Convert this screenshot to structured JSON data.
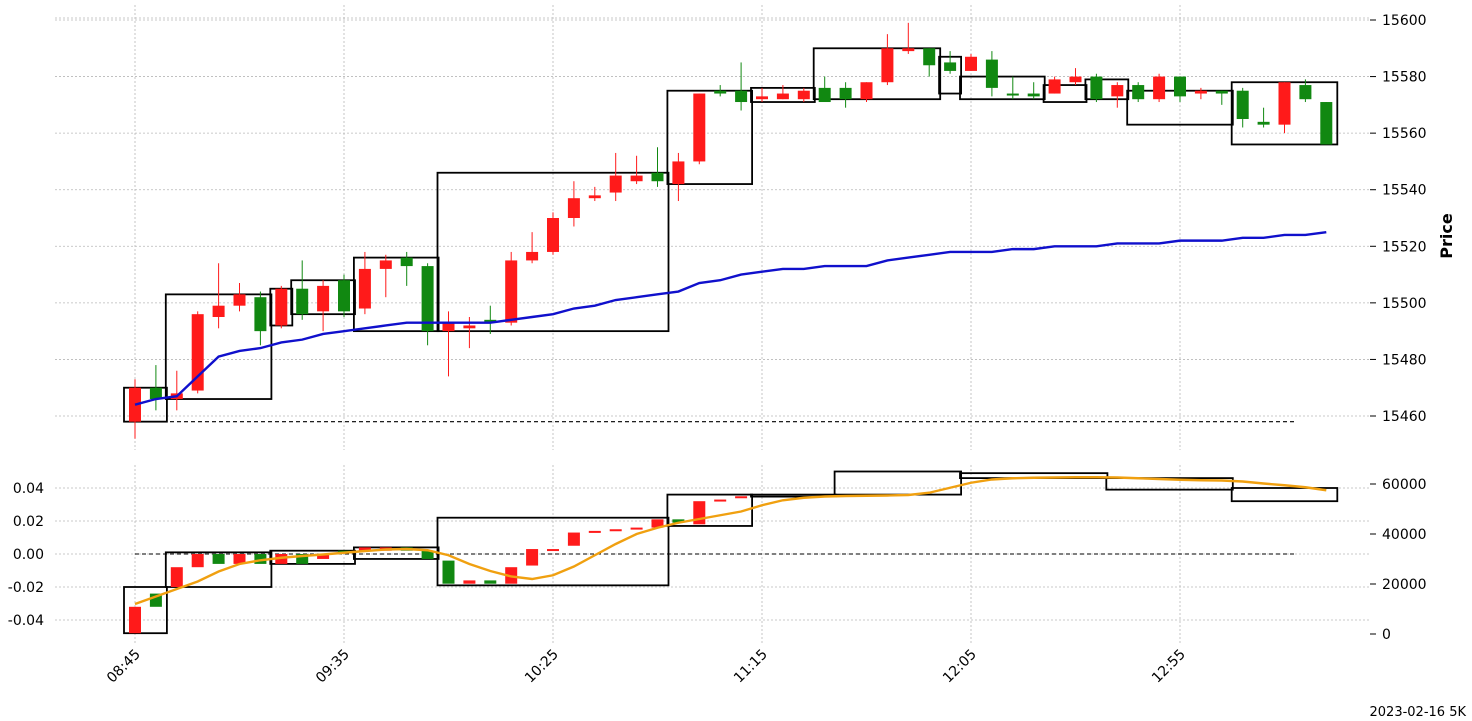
{
  "colors": {
    "up": "#ff1a1a",
    "down": "#118811",
    "vwap": "#1010cc",
    "volume_line": "#f0a010",
    "box": "#000000",
    "grid": "#b8b8b8"
  },
  "chart_data": [
    {
      "type": "candlestick",
      "ylabel": "Price",
      "yticks": [
        15460,
        15480,
        15500,
        15520,
        15540,
        15560,
        15580,
        15600
      ],
      "ylim": [
        15446,
        15605
      ],
      "xtick_labels": [
        "08:45",
        "09:35",
        "10:25",
        "11:15",
        "12:05",
        "12:55"
      ],
      "xtick_index": [
        0,
        10,
        20,
        30,
        40,
        50
      ],
      "grid": true,
      "baseline": 15458,
      "candles": [
        {
          "o": 15470,
          "h": 15473,
          "l": 15452,
          "c": 15458,
          "up": true
        },
        {
          "o": 15470,
          "h": 15478,
          "l": 15462,
          "c": 15466,
          "down": true
        },
        {
          "o": 15466,
          "h": 15476,
          "l": 15462,
          "c": 15468,
          "up": true
        },
        {
          "o": 15469,
          "h": 15497,
          "l": 15468,
          "c": 15496,
          "up": true
        },
        {
          "o": 15495,
          "h": 15514,
          "l": 15491,
          "c": 15499,
          "up": true
        },
        {
          "o": 15499,
          "h": 15507,
          "l": 15497,
          "c": 15503,
          "up": true
        },
        {
          "o": 15502,
          "h": 15504,
          "l": 15485,
          "c": 15490,
          "down": true
        },
        {
          "o": 15492,
          "h": 15506,
          "l": 15491,
          "c": 15505,
          "up": true
        },
        {
          "o": 15505,
          "h": 15515,
          "l": 15494,
          "c": 15496,
          "down": true
        },
        {
          "o": 15497,
          "h": 15508,
          "l": 15490,
          "c": 15506,
          "up": true
        },
        {
          "o": 15508,
          "h": 15510,
          "l": 15495,
          "c": 15497,
          "down": true
        },
        {
          "o": 15498,
          "h": 15518,
          "l": 15496,
          "c": 15512,
          "up": true
        },
        {
          "o": 15512,
          "h": 15517,
          "l": 15502,
          "c": 15515,
          "up": true
        },
        {
          "o": 15516,
          "h": 15518,
          "l": 15506,
          "c": 15513,
          "down": true
        },
        {
          "o": 15513,
          "h": 15514,
          "l": 15485,
          "c": 15490,
          "down": true
        },
        {
          "o": 15490,
          "h": 15497,
          "l": 15474,
          "c": 15493,
          "up": true
        },
        {
          "o": 15491,
          "h": 15495,
          "l": 15484,
          "c": 15492,
          "up": true
        },
        {
          "o": 15494,
          "h": 15499,
          "l": 15489,
          "c": 15493,
          "down": true
        },
        {
          "o": 15493,
          "h": 15518,
          "l": 15492,
          "c": 15515,
          "up": true
        },
        {
          "o": 15515,
          "h": 15525,
          "l": 15514,
          "c": 15518,
          "up": true
        },
        {
          "o": 15518,
          "h": 15532,
          "l": 15517,
          "c": 15530,
          "up": true
        },
        {
          "o": 15530,
          "h": 15543,
          "l": 15527,
          "c": 15537,
          "up": true
        },
        {
          "o": 15537,
          "h": 15541,
          "l": 15536,
          "c": 15538,
          "up": true
        },
        {
          "o": 15539,
          "h": 15553,
          "l": 15536,
          "c": 15545,
          "up": true
        },
        {
          "o": 15543,
          "h": 15552,
          "l": 15542,
          "c": 15545,
          "up": true
        },
        {
          "o": 15546,
          "h": 15555,
          "l": 15541,
          "c": 15543,
          "down": true
        },
        {
          "o": 15542,
          "h": 15553,
          "l": 15536,
          "c": 15550,
          "up": true
        },
        {
          "o": 15550,
          "h": 15574,
          "l": 15549,
          "c": 15574,
          "up": true
        },
        {
          "o": 15574,
          "h": 15577,
          "l": 15573,
          "c": 15575,
          "down": true
        },
        {
          "o": 15575,
          "h": 15585,
          "l": 15568,
          "c": 15571,
          "down": true
        },
        {
          "o": 15572,
          "h": 15576,
          "l": 15571,
          "c": 15573,
          "up": true
        },
        {
          "o": 15574,
          "h": 15577,
          "l": 15572,
          "c": 15572,
          "up": true
        },
        {
          "o": 15572,
          "h": 15576,
          "l": 15571,
          "c": 15575,
          "up": true
        },
        {
          "o": 15576,
          "h": 15580,
          "l": 15572,
          "c": 15571,
          "down": true
        },
        {
          "o": 15572,
          "h": 15578,
          "l": 15569,
          "c": 15576,
          "down": true
        },
        {
          "o": 15572,
          "h": 15578,
          "l": 15571,
          "c": 15578,
          "up": true
        },
        {
          "o": 15578,
          "h": 15595,
          "l": 15577,
          "c": 15590,
          "up": true
        },
        {
          "o": 15589,
          "h": 15599,
          "l": 15588,
          "c": 15590,
          "up": true
        },
        {
          "o": 15590,
          "h": 15590,
          "l": 15580,
          "c": 15584,
          "down": true
        },
        {
          "o": 15585,
          "h": 15589,
          "l": 15581,
          "c": 15582,
          "down": true
        },
        {
          "o": 15582,
          "h": 15588,
          "l": 15582,
          "c": 15587,
          "up": true
        },
        {
          "o": 15586,
          "h": 15589,
          "l": 15573,
          "c": 15576,
          "down": true
        },
        {
          "o": 15574,
          "h": 15580,
          "l": 15572,
          "c": 15574,
          "down": true
        },
        {
          "o": 15574,
          "h": 15578,
          "l": 15572,
          "c": 15573,
          "down": true
        },
        {
          "o": 15574,
          "h": 15580,
          "l": 15574,
          "c": 15579,
          "up": true
        },
        {
          "o": 15578,
          "h": 15583,
          "l": 15577,
          "c": 15580,
          "up": true
        },
        {
          "o": 15580,
          "h": 15581,
          "l": 15571,
          "c": 15572,
          "down": true
        },
        {
          "o": 15573,
          "h": 15578,
          "l": 15569,
          "c": 15577,
          "up": true
        },
        {
          "o": 15577,
          "h": 15578,
          "l": 15571,
          "c": 15572,
          "down": true
        },
        {
          "o": 15572,
          "h": 15581,
          "l": 15571,
          "c": 15580,
          "up": true
        },
        {
          "o": 15580,
          "h": 15580,
          "l": 15571,
          "c": 15573,
          "down": true
        },
        {
          "o": 15574,
          "h": 15576,
          "l": 15572,
          "c": 15575,
          "up": true
        },
        {
          "o": 15575,
          "h": 15575,
          "l": 15570,
          "c": 15574,
          "down": true
        },
        {
          "o": 15575,
          "h": 15576,
          "l": 15562,
          "c": 15565,
          "down": true
        },
        {
          "o": 15564,
          "h": 15569,
          "l": 15562,
          "c": 15563,
          "down": true
        },
        {
          "o": 15563,
          "h": 15578,
          "l": 15560,
          "c": 15578,
          "up": true
        },
        {
          "o": 15577,
          "h": 15579,
          "l": 15571,
          "c": 15572,
          "down": true
        },
        {
          "o": 15571,
          "h": 15571,
          "l": 15556,
          "c": 15556,
          "down": true
        }
      ],
      "vwap": [
        15464,
        15466,
        15467,
        15474,
        15481,
        15483,
        15484,
        15486,
        15487,
        15489,
        15490,
        15491,
        15492,
        15493,
        15493,
        15493,
        15493,
        15493,
        15494,
        15495,
        15496,
        15498,
        15499,
        15501,
        15502,
        15503,
        15504,
        15507,
        15508,
        15510,
        15511,
        15512,
        15512,
        15513,
        15513,
        15513,
        15515,
        15516,
        15517,
        15518,
        15518,
        15518,
        15519,
        15519,
        15520,
        15520,
        15520,
        15521,
        15521,
        15521,
        15522,
        15522,
        15522,
        15523,
        15523,
        15524,
        15524,
        15525
      ],
      "boxes": [
        {
          "i0": 0,
          "i1": 1,
          "lo": 15458,
          "hi": 15470
        },
        {
          "i0": 2,
          "i1": 6,
          "lo": 15466,
          "hi": 15503
        },
        {
          "i0": 7,
          "i1": 7,
          "lo": 15492,
          "hi": 15505
        },
        {
          "i0": 8,
          "i1": 10,
          "lo": 15496,
          "hi": 15508
        },
        {
          "i0": 11,
          "i1": 14,
          "lo": 15490,
          "hi": 15516
        },
        {
          "i0": 15,
          "i1": 25,
          "lo": 15490,
          "hi": 15546
        },
        {
          "i0": 26,
          "i1": 29,
          "lo": 15542,
          "hi": 15575
        },
        {
          "i0": 30,
          "i1": 32,
          "lo": 15571,
          "hi": 15576
        },
        {
          "i0": 33,
          "i1": 38,
          "lo": 15572,
          "hi": 15590
        },
        {
          "i0": 39,
          "i1": 39,
          "lo": 15574,
          "hi": 15587
        },
        {
          "i0": 40,
          "i1": 43,
          "lo": 15572,
          "hi": 15580
        },
        {
          "i0": 44,
          "i1": 45,
          "lo": 15571,
          "hi": 15577
        },
        {
          "i0": 46,
          "i1": 47,
          "lo": 15572,
          "hi": 15579
        },
        {
          "i0": 48,
          "i1": 52,
          "lo": 15563,
          "hi": 15575
        },
        {
          "i0": 53,
          "i1": 57,
          "lo": 15556,
          "hi": 15578
        }
      ]
    },
    {
      "type": "candlestick",
      "yticks_left": [
        -0.04,
        -0.02,
        0.0,
        0.02,
        0.04
      ],
      "ylim_left": [
        -0.0492,
        0.0492
      ],
      "yticks_right": [
        0,
        20000,
        40000,
        60000
      ],
      "ylim_right": [
        -1200,
        64000
      ],
      "grid": true,
      "baseline": 0.0,
      "candles": [
        {
          "o": -0.032,
          "h": -0.032,
          "l": -0.048,
          "c": -0.048,
          "up": true
        },
        {
          "o": -0.032,
          "h": -0.024,
          "l": -0.032,
          "c": -0.024,
          "down": true
        },
        {
          "o": -0.02,
          "h": -0.006,
          "l": -0.021,
          "c": -0.008,
          "up": true
        },
        {
          "o": -0.008,
          "h": -0.0,
          "l": -0.009,
          "c": 0.0,
          "up": true
        },
        {
          "o": 0.0,
          "h": 0.0,
          "l": -0.006,
          "c": -0.006,
          "down": true
        },
        {
          "o": -0.006,
          "h": 0.0,
          "l": -0.006,
          "c": 0.0,
          "up": true
        },
        {
          "o": 0.0,
          "h": 0.0,
          "l": -0.006,
          "c": -0.006,
          "down": true
        },
        {
          "o": -0.006,
          "h": 0.0,
          "l": -0.006,
          "c": 0.0,
          "up": true
        },
        {
          "o": 0.0,
          "h": 0.003,
          "l": -0.006,
          "c": -0.006,
          "down": true
        },
        {
          "o": 0.0,
          "h": 0.0,
          "l": -0.006,
          "c": -0.003,
          "up": true
        },
        {
          "o": 0.002,
          "h": 0.004,
          "l": 0.001,
          "c": 0.002,
          "down": true
        },
        {
          "o": 0.002,
          "h": 0.004,
          "l": 0.002,
          "c": 0.004,
          "up": true
        },
        {
          "o": 0.004,
          "h": 0.004,
          "l": 0.002,
          "c": 0.002,
          "up": true
        },
        {
          "o": 0.002,
          "h": 0.004,
          "l": 0.002,
          "c": 0.004,
          "down": true
        },
        {
          "o": 0.002,
          "h": 0.004,
          "l": -0.004,
          "c": -0.003,
          "down": true
        },
        {
          "o": -0.004,
          "h": -0.004,
          "l": -0.018,
          "c": -0.018,
          "down": true
        },
        {
          "o": -0.016,
          "h": -0.016,
          "l": -0.018,
          "c": -0.018,
          "up": true
        },
        {
          "o": -0.016,
          "h": -0.016,
          "l": -0.018,
          "c": -0.018,
          "down": true
        },
        {
          "o": -0.008,
          "h": -0.008,
          "l": -0.018,
          "c": -0.018,
          "up": true
        },
        {
          "o": 0.003,
          "h": 0.003,
          "l": -0.007,
          "c": -0.007,
          "up": true
        },
        {
          "o": 0.003,
          "h": 0.004,
          "l": 0.002,
          "c": 0.003,
          "up": true
        },
        {
          "o": 0.005,
          "h": 0.013,
          "l": 0.004,
          "c": 0.013,
          "up": true
        },
        {
          "o": 0.014,
          "h": 0.015,
          "l": 0.013,
          "c": 0.014,
          "up": true
        },
        {
          "o": 0.015,
          "h": 0.016,
          "l": 0.014,
          "c": 0.015,
          "up": true
        },
        {
          "o": 0.015,
          "h": 0.016,
          "l": 0.014,
          "c": 0.016,
          "up": true
        },
        {
          "o": 0.021,
          "h": 0.021,
          "l": 0.016,
          "c": 0.016,
          "up": true
        },
        {
          "o": 0.021,
          "h": 0.021,
          "l": 0.019,
          "c": 0.019,
          "down": true
        },
        {
          "o": 0.018,
          "h": 0.032,
          "l": 0.017,
          "c": 0.032,
          "up": true
        },
        {
          "o": 0.033,
          "h": 0.034,
          "l": 0.032,
          "c": 0.033,
          "up": true
        },
        {
          "o": 0.034,
          "h": 0.036,
          "l": 0.033,
          "c": 0.035,
          "up": true
        }
      ],
      "volume_sma": [
        12000,
        15000,
        18000,
        21000,
        25000,
        28000,
        29500,
        30500,
        31200,
        31800,
        32500,
        33200,
        33800,
        34000,
        33500,
        31500,
        28000,
        25200,
        23000,
        22000,
        23500,
        27000,
        31500,
        36000,
        40000,
        42500,
        44500,
        46000,
        47500,
        49000,
        51500,
        53500,
        54500,
        55000,
        55200,
        55300,
        55400,
        55600,
        56500,
        58500,
        60500,
        61800,
        62300,
        62500,
        62600,
        62700,
        62700,
        62600,
        62300,
        62000,
        61700,
        61500,
        61400,
        61000,
        60200,
        59500,
        58700,
        57500
      ],
      "boxes": [
        {
          "i0": 0,
          "i1": 1,
          "lo": -0.048,
          "hi": -0.02
        },
        {
          "i0": 2,
          "i1": 6,
          "lo": -0.02,
          "hi": 0.001
        },
        {
          "i0": 7,
          "i1": 10,
          "lo": -0.006,
          "hi": 0.002
        },
        {
          "i0": 11,
          "i1": 14,
          "lo": -0.003,
          "hi": 0.004
        },
        {
          "i0": 15,
          "i1": 25,
          "lo": -0.019,
          "hi": 0.022
        },
        {
          "i0": 26,
          "i1": 29,
          "lo": 0.017,
          "hi": 0.036
        },
        {
          "i0": 30,
          "i1": 33,
          "lo": 0.036,
          "hi": 0.036
        },
        {
          "i0": 34,
          "i1": 39,
          "lo": 0.036,
          "hi": 0.05
        },
        {
          "i0": 40,
          "i1": 46,
          "lo": 0.046,
          "hi": 0.049
        },
        {
          "i0": 47,
          "i1": 52,
          "lo": 0.039,
          "hi": 0.046
        },
        {
          "i0": 53,
          "i1": 57,
          "lo": 0.032,
          "hi": 0.04
        }
      ]
    }
  ],
  "footer_label": "2023-02-16 5K"
}
